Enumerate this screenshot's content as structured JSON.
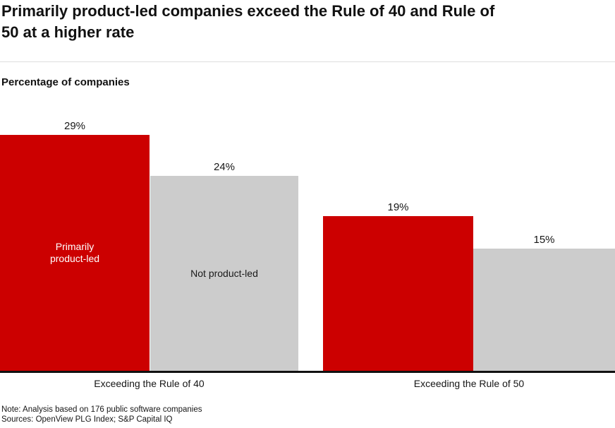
{
  "page": {
    "title_lines": [
      "Primarily product-led companies exceed the Rule of 40 and Rule of",
      "50 at a higher rate"
    ]
  },
  "chart_data": {
    "type": "bar",
    "title": "Primarily product-led companies exceed the Rule of 40 and Rule of 50 at a higher rate",
    "ylabel": "Percentage of companies",
    "xlabel": "",
    "categories": [
      "Exceeding the Rule of 40",
      "Exceeding the Rule of 50"
    ],
    "series": [
      {
        "name": "Primarily product-led",
        "values": [
          29,
          19
        ],
        "color": "#CC0000",
        "label_color": "#FFFFFF"
      },
      {
        "name": "Not product-led",
        "values": [
          24,
          15
        ],
        "color": "#CCCCCC",
        "label_color": "#1A1A1A"
      }
    ],
    "value_suffix": "%",
    "ylim": [
      0,
      30
    ],
    "grid": false,
    "legend": "labels-inside-first-bars",
    "notes": [
      "Note: Analysis based on 176 public software companies",
      "Sources: OpenView PLG Index; S&P Capital IQ"
    ]
  },
  "colors": {
    "accent_red": "#CC0000",
    "bar_gray": "#CCCCCC",
    "axis": "#111111",
    "text": "#111111",
    "divider": "#DEDEDE",
    "background": "#FFFFFF"
  }
}
